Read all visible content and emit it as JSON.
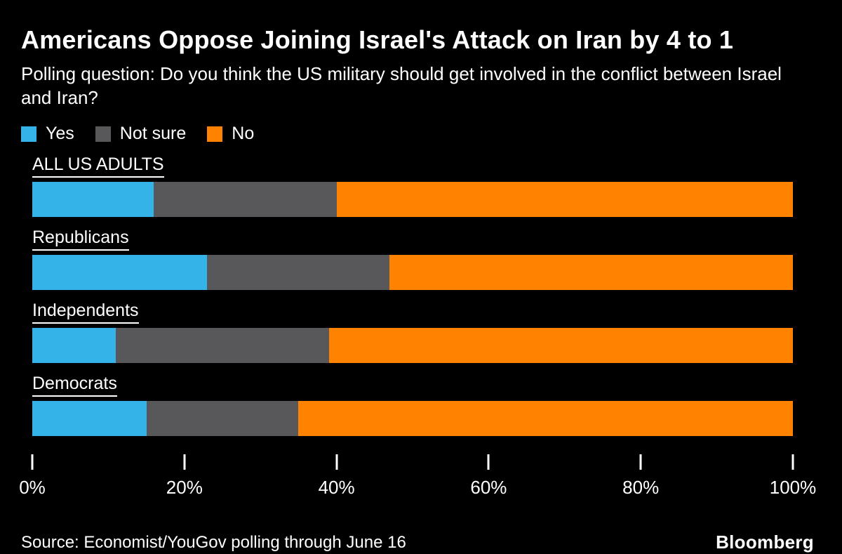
{
  "header": {
    "title": "Americans Oppose Joining Israel's Attack on Iran by 4 to 1",
    "subtitle": "Polling question: Do you think the US military should get involved in the conflict between Israel and Iran?"
  },
  "chart_data": {
    "type": "bar",
    "orientation": "horizontal",
    "stacked": true,
    "unit": "%",
    "title": "Americans Oppose Joining Israel's Attack on Iran by 4 to 1",
    "subtitle": "Polling question: Do you think the US military should get involved in the conflict between Israel and Iran?",
    "categories": [
      "ALL US ADULTS",
      "Republicans",
      "Independents",
      "Democrats"
    ],
    "series": [
      {
        "name": "Yes",
        "color": "#33b3e8",
        "values": [
          16,
          23,
          11,
          15
        ]
      },
      {
        "name": "Not sure",
        "color": "#58585a",
        "values": [
          24,
          24,
          28,
          20
        ]
      },
      {
        "name": "No",
        "color": "#ff8200",
        "values": [
          60,
          53,
          61,
          65
        ]
      }
    ],
    "x_axis": {
      "ticks": [
        "0%",
        "20%",
        "40%",
        "60%",
        "80%",
        "100%"
      ],
      "range": [
        0,
        100
      ],
      "grid": false
    },
    "legend_position": "top",
    "background": "#000000",
    "text_color": "#ffffff"
  },
  "footer": {
    "source": "Source: Economist/YouGov polling through June 16",
    "brand": "Bloomberg"
  }
}
